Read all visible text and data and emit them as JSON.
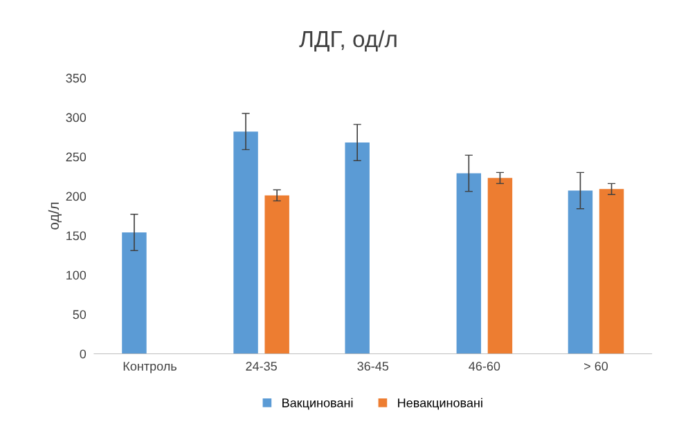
{
  "chart_data": {
    "type": "bar",
    "title": "ЛДГ, од/л",
    "ylabel": "од/л",
    "categories": [
      "Контроль",
      "24-35",
      "36-45",
      "46-60",
      "> 60"
    ],
    "series": [
      {
        "name": "Вакциновані",
        "color": "#5b9bd5",
        "values": [
          154,
          282,
          268,
          229,
          207
        ],
        "errors": [
          23,
          23,
          23,
          23,
          23
        ]
      },
      {
        "name": "Невакциновані",
        "color": "#ed7d31",
        "values": [
          null,
          201,
          null,
          223,
          209
        ],
        "errors": [
          null,
          7,
          null,
          7,
          7
        ]
      }
    ],
    "ylim": [
      0,
      350
    ],
    "yticks": [
      0,
      50,
      100,
      150,
      200,
      250,
      300,
      350
    ],
    "grid": false,
    "legend": "bottom"
  }
}
